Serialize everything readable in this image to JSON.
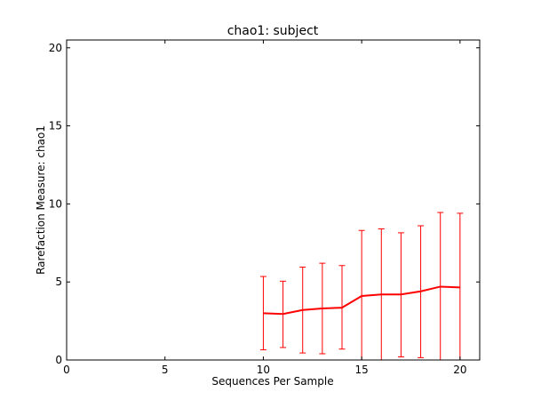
{
  "chart_data": {
    "type": "line",
    "title": "chao1: subject",
    "xlabel": "Sequences Per Sample",
    "ylabel": "Rarefaction Measure: chao1",
    "xlim": [
      0,
      21
    ],
    "ylim": [
      0,
      20.5
    ],
    "xticks": [
      "0",
      "5",
      "10",
      "15",
      "20"
    ],
    "yticks": [
      "0",
      "5",
      "10",
      "15",
      "20"
    ],
    "grid": false,
    "series": [
      {
        "color": "#ff0000",
        "x": [
          10,
          11,
          12,
          13,
          14,
          15,
          16,
          17,
          18,
          19,
          20
        ],
        "y": [
          3.0,
          2.95,
          3.2,
          3.3,
          3.35,
          4.1,
          4.2,
          4.2,
          4.4,
          4.7,
          4.65
        ],
        "err_low": [
          0.65,
          0.8,
          0.45,
          0.4,
          0.7,
          0.0,
          0.0,
          0.2,
          0.15,
          0.0,
          0.0
        ],
        "err_high": [
          5.35,
          5.05,
          5.95,
          6.2,
          6.05,
          8.3,
          8.4,
          8.15,
          8.6,
          9.45,
          9.4
        ]
      }
    ]
  }
}
